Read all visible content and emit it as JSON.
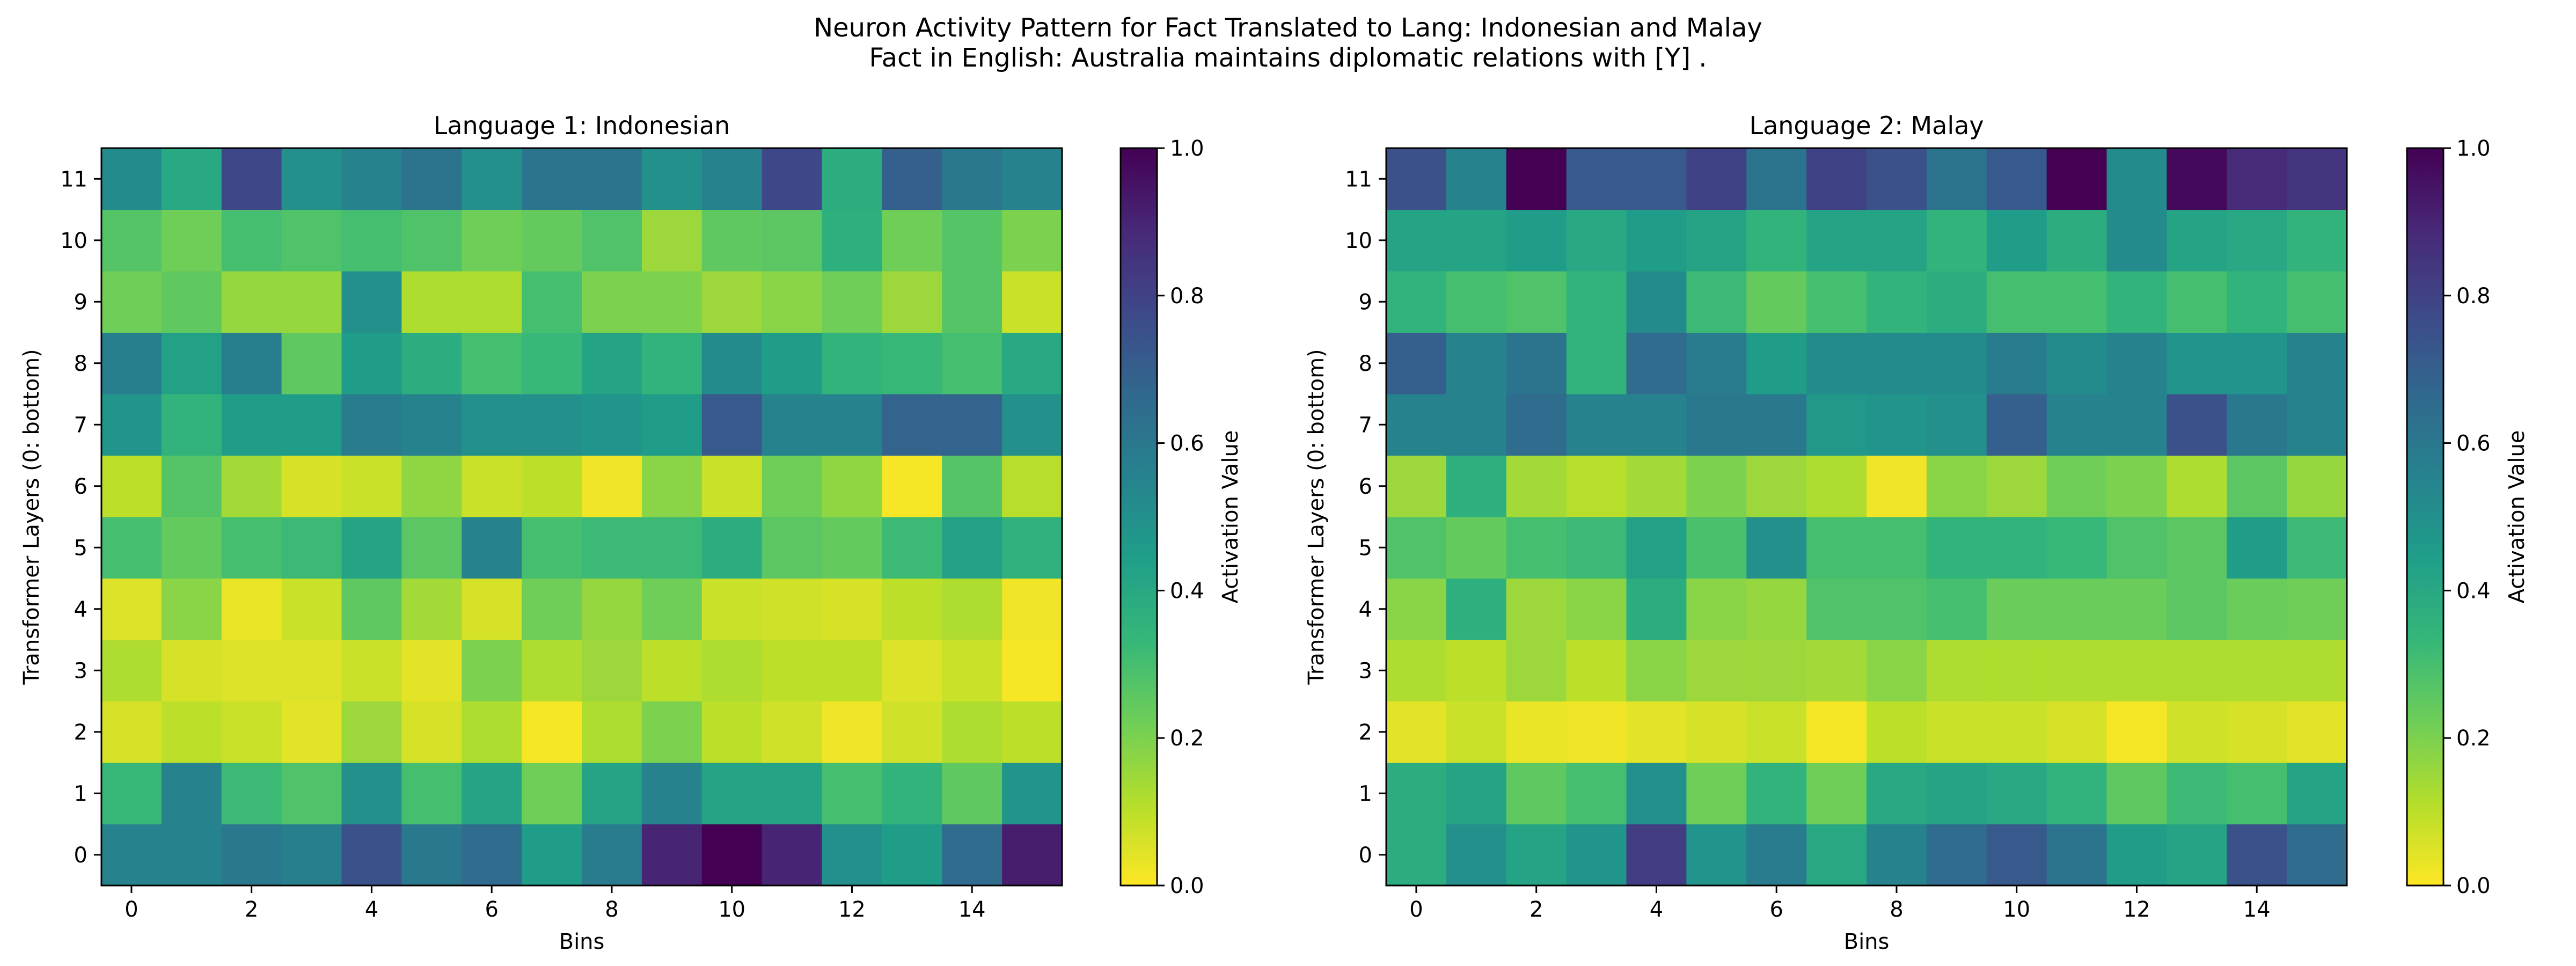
{
  "figure": {
    "title_line1": "Neuron Activity Pattern for Fact Translated to Lang: Indonesian and Malay",
    "title_line2": "Fact in English: Australia maintains diplomatic relations with [Y] ."
  },
  "colormap": {
    "name": "viridis_r",
    "stops": [
      "#fde725",
      "#b5de2b",
      "#6ece58",
      "#35b779",
      "#1f9e89",
      "#26828e",
      "#31688e",
      "#3e4989",
      "#482878",
      "#440154"
    ]
  },
  "chart_data": [
    {
      "type": "heatmap",
      "title": "Language 1: Indonesian",
      "xlabel": "Bins",
      "ylabel": "Transformer Layers (0: bottom)",
      "colorbar_label": "Activation Value",
      "x_ticks": [
        "0",
        "2",
        "4",
        "6",
        "8",
        "10",
        "12",
        "14"
      ],
      "y_ticks": [
        "0",
        "1",
        "2",
        "3",
        "4",
        "5",
        "6",
        "7",
        "8",
        "9",
        "10",
        "11"
      ],
      "colorbar_ticks": [
        "0.0",
        "0.2",
        "0.4",
        "0.6",
        "0.8",
        "1.0"
      ],
      "vmin": 0.0,
      "vmax": 1.0,
      "n_bins": 16,
      "n_layers": 12,
      "values": [
        [
          0.55,
          0.55,
          0.6,
          0.57,
          0.75,
          0.6,
          0.65,
          0.45,
          0.58,
          0.9,
          1.0,
          0.9,
          0.5,
          0.45,
          0.65,
          0.92
        ],
        [
          0.33,
          0.55,
          0.32,
          0.28,
          0.5,
          0.3,
          0.42,
          0.22,
          0.42,
          0.55,
          0.42,
          0.42,
          0.3,
          0.35,
          0.25,
          0.48
        ],
        [
          0.06,
          0.1,
          0.08,
          0.04,
          0.15,
          0.06,
          0.12,
          0.01,
          0.12,
          0.2,
          0.1,
          0.07,
          0.02,
          0.07,
          0.12,
          0.1
        ],
        [
          0.12,
          0.06,
          0.05,
          0.05,
          0.08,
          0.04,
          0.2,
          0.12,
          0.15,
          0.1,
          0.12,
          0.1,
          0.1,
          0.05,
          0.08,
          0.01
        ],
        [
          0.05,
          0.18,
          0.03,
          0.08,
          0.25,
          0.14,
          0.06,
          0.22,
          0.16,
          0.22,
          0.08,
          0.07,
          0.06,
          0.1,
          0.12,
          0.02
        ],
        [
          0.3,
          0.24,
          0.3,
          0.32,
          0.42,
          0.26,
          0.55,
          0.3,
          0.32,
          0.32,
          0.38,
          0.26,
          0.24,
          0.32,
          0.43,
          0.36
        ],
        [
          0.1,
          0.27,
          0.14,
          0.06,
          0.08,
          0.17,
          0.08,
          0.1,
          0.02,
          0.18,
          0.08,
          0.22,
          0.17,
          0.01,
          0.27,
          0.11
        ],
        [
          0.48,
          0.35,
          0.45,
          0.45,
          0.58,
          0.55,
          0.5,
          0.5,
          0.48,
          0.45,
          0.72,
          0.55,
          0.55,
          0.68,
          0.68,
          0.5
        ],
        [
          0.57,
          0.43,
          0.57,
          0.25,
          0.45,
          0.38,
          0.3,
          0.33,
          0.42,
          0.35,
          0.52,
          0.45,
          0.35,
          0.33,
          0.3,
          0.4
        ],
        [
          0.22,
          0.25,
          0.16,
          0.16,
          0.5,
          0.12,
          0.12,
          0.3,
          0.2,
          0.2,
          0.15,
          0.18,
          0.22,
          0.15,
          0.27,
          0.08
        ],
        [
          0.27,
          0.22,
          0.3,
          0.28,
          0.3,
          0.28,
          0.22,
          0.24,
          0.28,
          0.15,
          0.25,
          0.26,
          0.37,
          0.22,
          0.27,
          0.2
        ],
        [
          0.52,
          0.4,
          0.78,
          0.5,
          0.55,
          0.62,
          0.5,
          0.62,
          0.62,
          0.5,
          0.55,
          0.78,
          0.38,
          0.7,
          0.6,
          0.55
        ]
      ]
    },
    {
      "type": "heatmap",
      "title": "Language 2: Malay",
      "xlabel": "Bins",
      "ylabel": "Transformer Layers (0: bottom)",
      "colorbar_label": "Activation Value",
      "x_ticks": [
        "0",
        "2",
        "4",
        "6",
        "8",
        "10",
        "12",
        "14"
      ],
      "y_ticks": [
        "0",
        "1",
        "2",
        "3",
        "4",
        "5",
        "6",
        "7",
        "8",
        "9",
        "10",
        "11"
      ],
      "colorbar_ticks": [
        "0.0",
        "0.2",
        "0.4",
        "0.6",
        "0.8",
        "1.0"
      ],
      "vmin": 0.0,
      "vmax": 1.0,
      "n_bins": 16,
      "n_layers": 12,
      "values": [
        [
          0.38,
          0.5,
          0.42,
          0.48,
          0.82,
          0.48,
          0.58,
          0.4,
          0.55,
          0.65,
          0.72,
          0.62,
          0.45,
          0.42,
          0.75,
          0.65
        ],
        [
          0.38,
          0.42,
          0.25,
          0.3,
          0.5,
          0.22,
          0.35,
          0.22,
          0.4,
          0.42,
          0.4,
          0.35,
          0.25,
          0.32,
          0.3,
          0.42
        ],
        [
          0.04,
          0.08,
          0.03,
          0.02,
          0.04,
          0.06,
          0.08,
          0.01,
          0.1,
          0.08,
          0.08,
          0.06,
          0.01,
          0.07,
          0.06,
          0.04
        ],
        [
          0.12,
          0.1,
          0.15,
          0.1,
          0.18,
          0.15,
          0.15,
          0.14,
          0.18,
          0.12,
          0.12,
          0.12,
          0.12,
          0.12,
          0.12,
          0.12
        ],
        [
          0.18,
          0.37,
          0.15,
          0.18,
          0.38,
          0.18,
          0.16,
          0.28,
          0.28,
          0.3,
          0.23,
          0.23,
          0.23,
          0.26,
          0.23,
          0.22
        ],
        [
          0.28,
          0.24,
          0.3,
          0.32,
          0.43,
          0.29,
          0.5,
          0.3,
          0.3,
          0.35,
          0.35,
          0.33,
          0.28,
          0.26,
          0.45,
          0.32
        ],
        [
          0.15,
          0.37,
          0.14,
          0.11,
          0.14,
          0.2,
          0.15,
          0.12,
          0.02,
          0.18,
          0.15,
          0.22,
          0.2,
          0.12,
          0.26,
          0.16
        ],
        [
          0.55,
          0.55,
          0.65,
          0.55,
          0.55,
          0.6,
          0.6,
          0.47,
          0.48,
          0.5,
          0.7,
          0.55,
          0.55,
          0.75,
          0.6,
          0.55
        ],
        [
          0.7,
          0.55,
          0.62,
          0.35,
          0.65,
          0.58,
          0.45,
          0.52,
          0.52,
          0.52,
          0.58,
          0.52,
          0.55,
          0.48,
          0.48,
          0.55
        ],
        [
          0.35,
          0.3,
          0.28,
          0.35,
          0.52,
          0.32,
          0.24,
          0.3,
          0.35,
          0.38,
          0.3,
          0.3,
          0.35,
          0.3,
          0.35,
          0.3
        ],
        [
          0.42,
          0.42,
          0.45,
          0.4,
          0.45,
          0.42,
          0.35,
          0.42,
          0.42,
          0.35,
          0.45,
          0.38,
          0.52,
          0.42,
          0.4,
          0.35
        ],
        [
          0.75,
          0.55,
          1.0,
          0.72,
          0.72,
          0.8,
          0.62,
          0.8,
          0.75,
          0.62,
          0.72,
          1.0,
          0.52,
          0.98,
          0.88,
          0.85
        ]
      ]
    }
  ]
}
